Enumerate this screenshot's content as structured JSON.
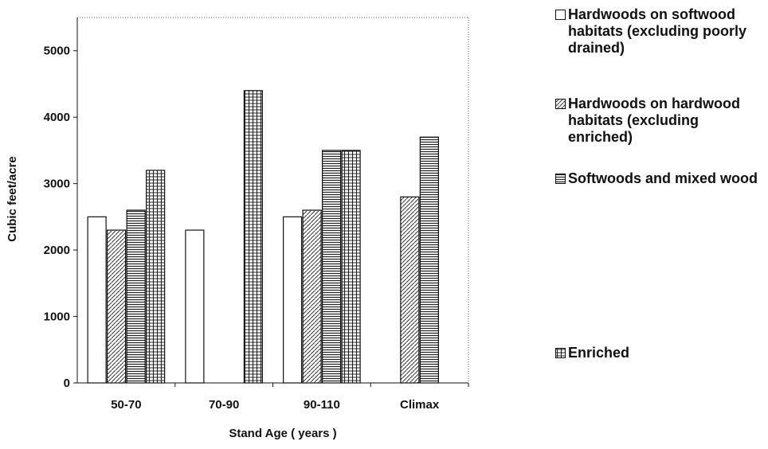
{
  "chart_data": {
    "type": "bar",
    "x_label": "Stand Age ( years )",
    "y_label": "Cubic feet/acre",
    "categories": [
      "50-70",
      "70-90",
      "90-110",
      "Climax"
    ],
    "series": [
      {
        "name": "Hardwoods on softwood habitats (excluding poorly drained)",
        "pattern": "none",
        "values": [
          2500,
          2300,
          2500,
          null
        ]
      },
      {
        "name": "Hardwoods on hardwood habitats (excluding enriched)",
        "pattern": "diagonal",
        "values": [
          2300,
          null,
          2600,
          2800
        ]
      },
      {
        "name": "Softwoods and mixed wood",
        "pattern": "horizontal",
        "values": [
          2600,
          null,
          3500,
          3700
        ]
      },
      {
        "name": "Enriched",
        "pattern": "grid",
        "values": [
          3200,
          4400,
          3500,
          null
        ]
      }
    ],
    "ylim": [
      0,
      5500
    ],
    "yticks": [
      0,
      1000,
      2000,
      3000,
      4000,
      5000
    ]
  }
}
